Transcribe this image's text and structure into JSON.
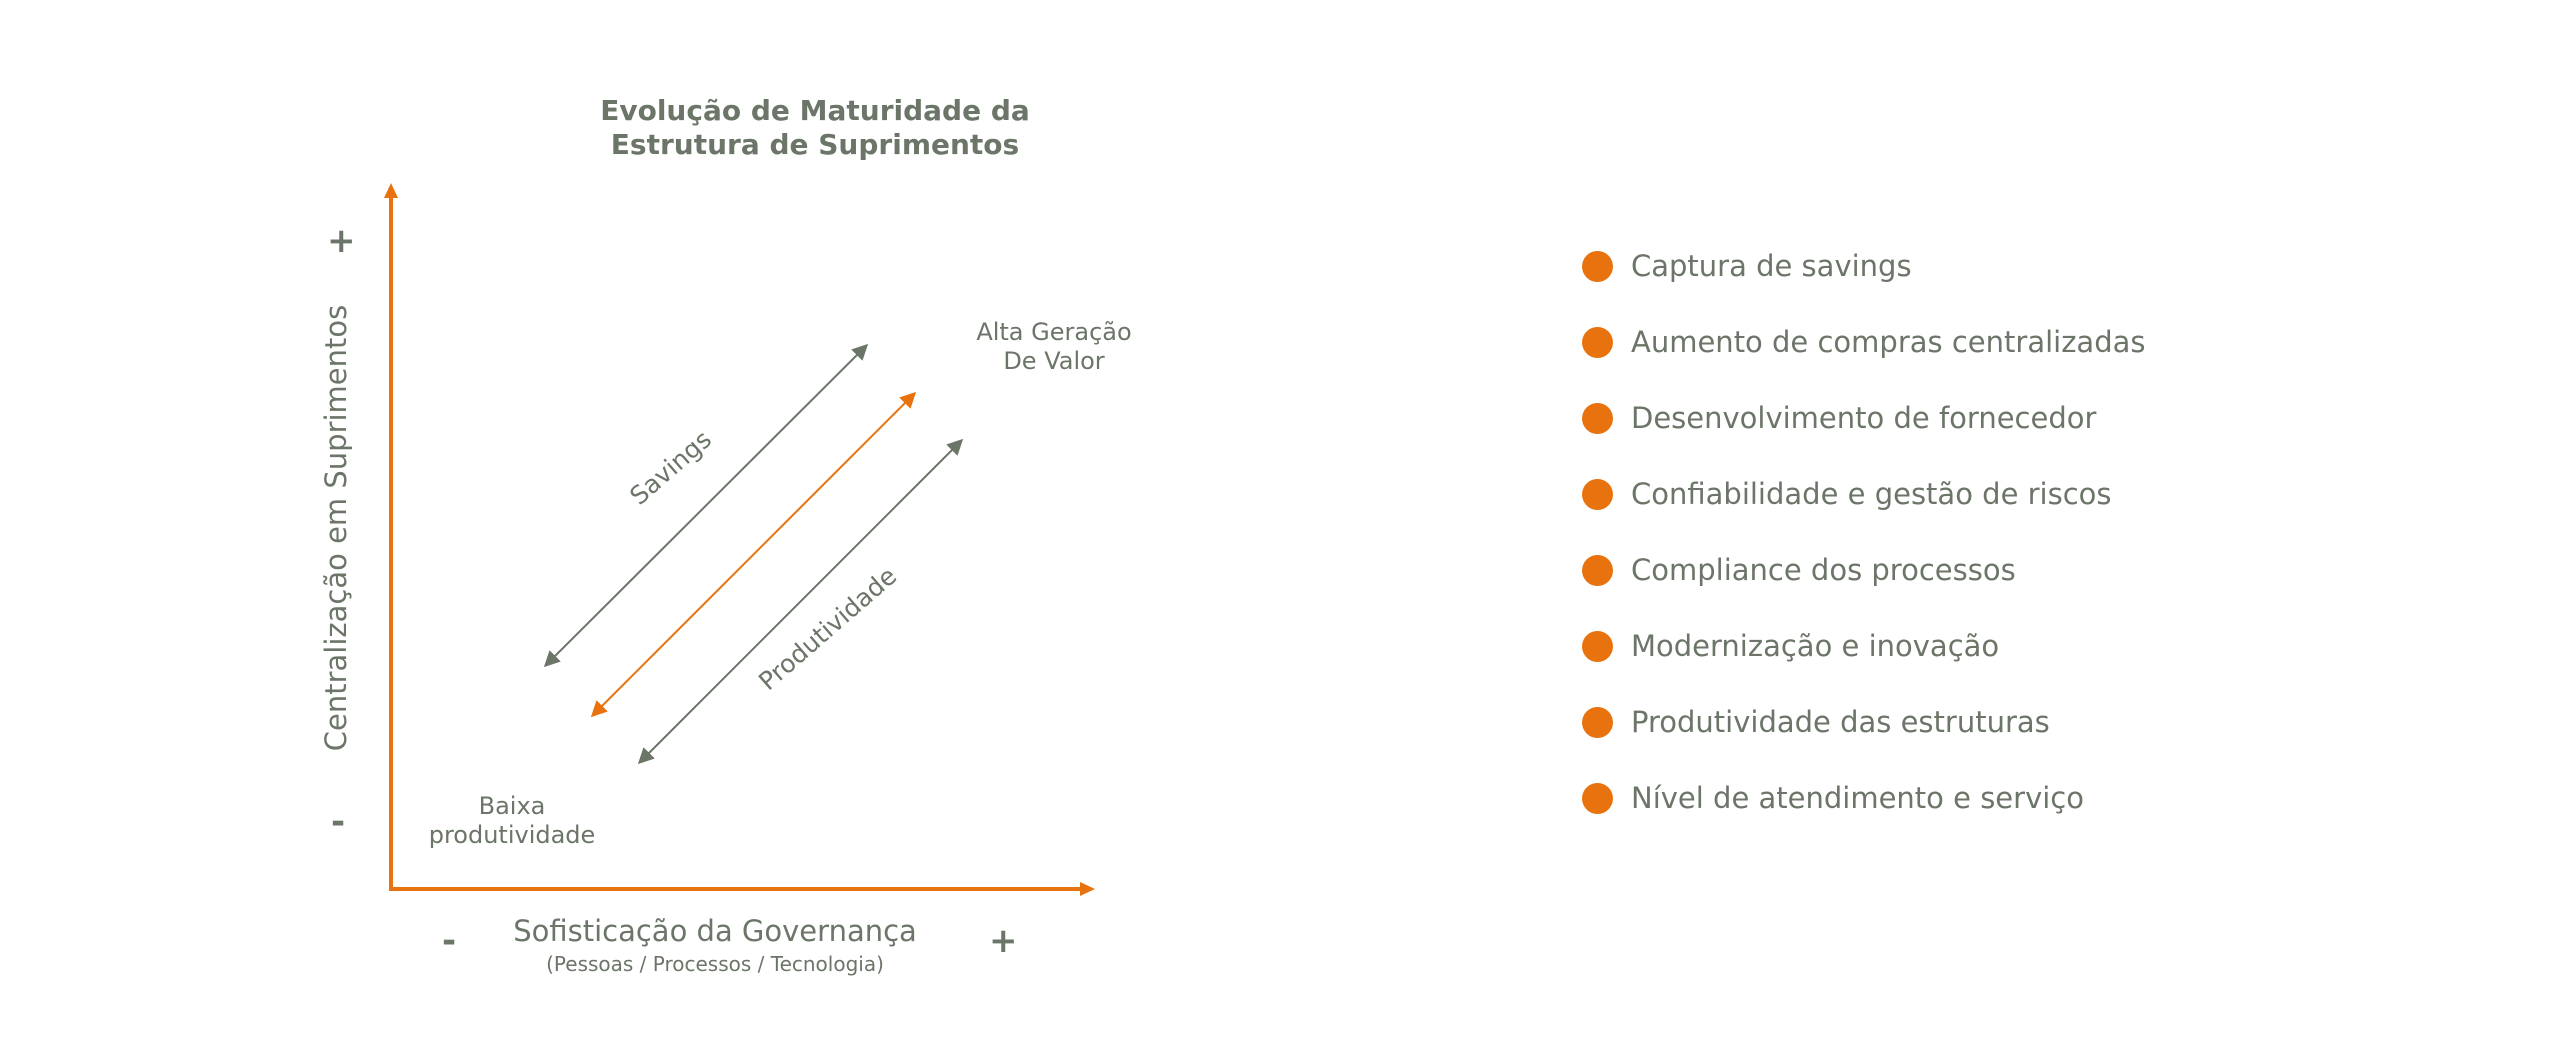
{
  "diagram": {
    "title_line1": "Evolução de Maturidade da",
    "title_line2": "Estrutura de Suprimentos",
    "y_axis": {
      "label": "Centralização em Suprimentos",
      "plus": "+",
      "minus": "-"
    },
    "x_axis": {
      "label": "Sofisticação da Governança",
      "sublabel": "(Pessoas / Processos / Tecnologia)",
      "plus": "+",
      "minus": "-"
    },
    "corner_top": {
      "line1": "Alta Geração",
      "line2": "De Valor"
    },
    "corner_bottom": {
      "line1": "Baixa",
      "line2": "produtividade"
    },
    "arrow_labels": {
      "savings": "Savings",
      "productivity": "Produtividade"
    },
    "colors": {
      "accent": "#e8730e",
      "text": "#6b7568",
      "arrow_gray": "#6b7568"
    }
  },
  "benefits": [
    "Captura de savings",
    "Aumento de compras centralizadas",
    "Desenvolvimento de fornecedor",
    "Confiabilidade e gestão de riscos",
    "Compliance dos processos",
    "Modernização e inovação",
    "Produtividade das estruturas",
    "Nível de atendimento e serviço"
  ]
}
